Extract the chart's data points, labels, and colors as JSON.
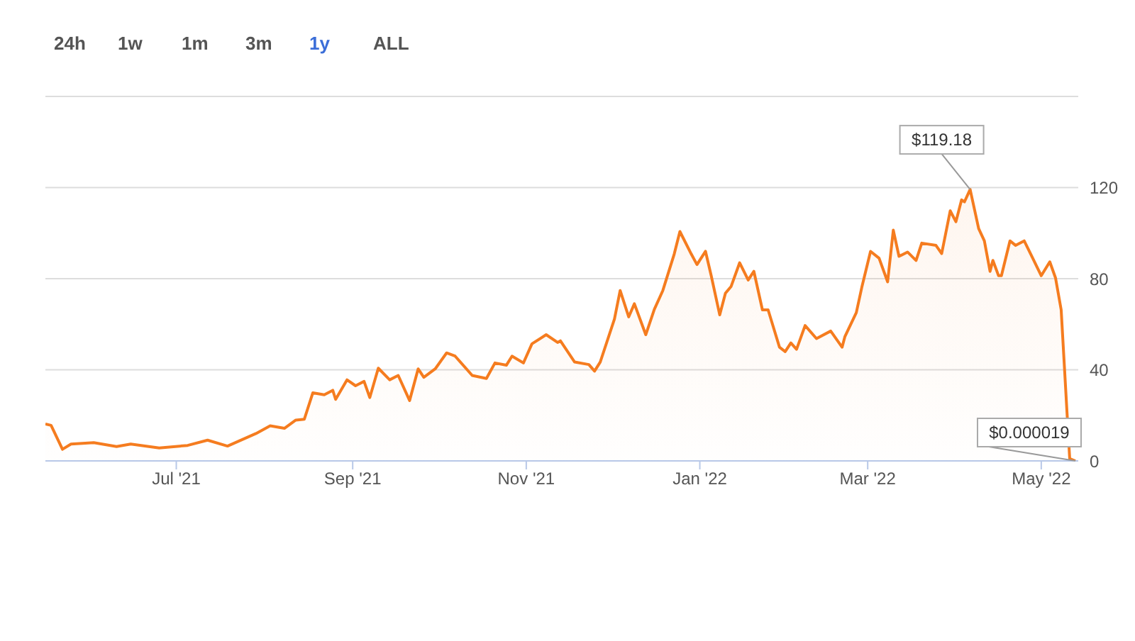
{
  "chart_data": {
    "type": "area",
    "color": "#f57c1f",
    "grid": "y",
    "annotations": [
      "24h",
      "1w",
      "1m",
      "3m",
      "1y",
      "ALL",
      {
        "text": "$119.18",
        "x": "2022-04-06",
        "y": 119.18
      },
      {
        "text": "$0.000019",
        "x": "2022-05-13",
        "y": 1.9e-05
      }
    ],
    "xlim": [
      "2021-05-16",
      "2022-05-14"
    ],
    "xticks": [
      {
        "value": "2021-07-01",
        "label": "Jul '21"
      },
      {
        "value": "2021-09-01",
        "label": "Sep '21"
      },
      {
        "value": "2021-11-01",
        "label": "Nov '21"
      },
      {
        "value": "2022-01-01",
        "label": "Jan '22"
      },
      {
        "value": "2022-03-01",
        "label": "Mar '22"
      },
      {
        "value": "2022-05-01",
        "label": "May '22"
      }
    ],
    "ylim": [
      0,
      160
    ],
    "yticks": [
      0,
      40,
      80,
      120,
      {
        "value": 160,
        "label": null
      }
    ],
    "x": [
      "2021-05-16",
      "2021-05-18",
      "2021-05-22",
      "2021-05-25",
      "2021-06-02",
      "2021-06-10",
      "2021-06-15",
      "2021-06-25",
      "2021-07-05",
      "2021-07-12",
      "2021-07-19",
      "2021-07-29",
      "2021-08-03",
      "2021-08-08",
      "2021-08-12",
      "2021-08-15",
      "2021-08-18",
      "2021-08-22",
      "2021-08-25",
      "2021-08-26",
      "2021-08-30",
      "2021-09-02",
      "2021-09-05",
      "2021-09-07",
      "2021-09-10",
      "2021-09-14",
      "2021-09-17",
      "2021-09-21",
      "2021-09-24",
      "2021-09-26",
      "2021-09-30",
      "2021-10-04",
      "2021-10-07",
      "2021-10-13",
      "2021-10-18",
      "2021-10-21",
      "2021-10-25",
      "2021-10-27",
      "2021-10-31",
      "2021-11-03",
      "2021-11-08",
      "2021-11-12",
      "2021-11-13",
      "2021-11-18",
      "2021-11-23",
      "2021-11-25",
      "2021-11-27",
      "2021-12-02",
      "2021-12-04",
      "2021-12-07",
      "2021-12-09",
      "2021-12-13",
      "2021-12-16",
      "2021-12-19",
      "2021-12-23",
      "2021-12-25",
      "2021-12-29",
      "2021-12-31",
      "2022-01-03",
      "2022-01-05",
      "2022-01-08",
      "2022-01-10",
      "2022-01-12",
      "2022-01-15",
      "2022-01-18",
      "2022-01-20",
      "2022-01-23",
      "2022-01-25",
      "2022-01-29",
      "2022-01-31",
      "2022-02-02",
      "2022-02-04",
      "2022-02-07",
      "2022-02-11",
      "2022-02-16",
      "2022-02-20",
      "2022-02-21",
      "2022-02-25",
      "2022-02-27",
      "2022-03-02",
      "2022-03-05",
      "2022-03-08",
      "2022-03-10",
      "2022-03-12",
      "2022-03-15",
      "2022-03-18",
      "2022-03-20",
      "2022-03-25",
      "2022-03-27",
      "2022-03-30",
      "2022-04-01",
      "2022-04-03",
      "2022-04-04",
      "2022-04-06",
      "2022-04-09",
      "2022-04-11",
      "2022-04-13",
      "2022-04-14",
      "2022-04-16",
      "2022-04-17",
      "2022-04-20",
      "2022-04-22",
      "2022-04-25",
      "2022-04-28",
      "2022-05-01",
      "2022-05-04",
      "2022-05-06",
      "2022-05-08",
      "2022-05-10",
      "2022-05-11",
      "2022-05-13"
    ],
    "values": [
      16.2,
      15.6,
      5.1,
      7.4,
      8,
      6.3,
      7.4,
      5.7,
      6.8,
      9.1,
      6.5,
      12,
      15.4,
      14.3,
      17.9,
      18.3,
      29.9,
      29,
      31,
      27,
      35.6,
      33,
      34.9,
      27.8,
      40.7,
      35.6,
      37.5,
      26.5,
      40.4,
      36.7,
      40.4,
      47.4,
      46,
      37.5,
      36.2,
      43,
      42,
      46,
      43,
      51.4,
      55.4,
      52,
      52.7,
      43.4,
      42.3,
      39.4,
      43.4,
      62.3,
      74.8,
      63.2,
      69,
      55.4,
      66.5,
      74.8,
      90.8,
      100.7,
      90.8,
      86.2,
      92,
      81.3,
      64.1,
      73.6,
      76.6,
      87,
      79.4,
      83.2,
      66.3,
      66.3,
      49.9,
      48,
      51.8,
      49,
      59.4,
      53.7,
      57,
      49.9,
      54.6,
      65.1,
      76.6,
      92,
      89,
      78.6,
      101.3,
      89.8,
      91.7,
      88,
      95.6,
      94.6,
      91,
      109.8,
      105,
      114.6,
      113.7,
      119.18,
      102,
      96.6,
      83.2,
      88,
      81.3,
      81.3,
      96.6,
      94.6,
      96.6,
      89,
      81.3,
      87.4,
      80.4,
      66.3,
      22.3,
      1,
      1.9e-05
    ]
  }
}
